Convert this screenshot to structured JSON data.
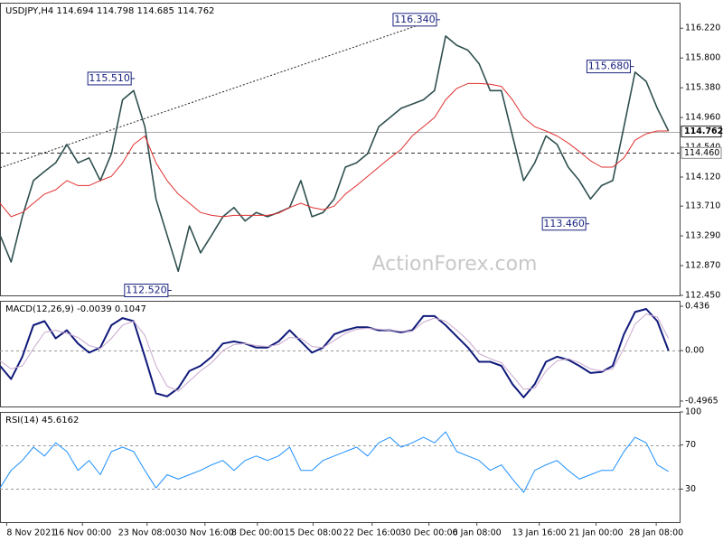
{
  "chart_data": [
    {
      "type": "line",
      "title": "USDJPY,H4  114.694 114.798 114.685 114.762",
      "xlim": [
        0,
        61
      ],
      "ylim": [
        112.45,
        116.58
      ],
      "yticks": [
        {
          "value": 116.22,
          "label": "116.220"
        },
        {
          "value": 115.8,
          "label": "115.800"
        },
        {
          "value": 115.38,
          "label": "115.380"
        },
        {
          "value": 114.96,
          "label": "114.960"
        },
        {
          "value": 114.54,
          "label": "114.540"
        },
        {
          "value": 114.12,
          "label": "114.120"
        },
        {
          "value": 113.71,
          "label": "113.710"
        },
        {
          "value": 113.29,
          "label": "113.290"
        },
        {
          "value": 112.87,
          "label": "112.870"
        },
        {
          "value": 112.45,
          "label": "112.450"
        }
      ],
      "series": [
        {
          "color": "#2f4f4f",
          "values": [
            113.3,
            112.92,
            113.56,
            114.07,
            114.2,
            114.32,
            114.58,
            114.32,
            114.39,
            114.07,
            114.45,
            115.21,
            115.34,
            114.83,
            113.81,
            113.3,
            112.79,
            113.43,
            113.05,
            113.3,
            113.56,
            113.69,
            113.5,
            113.62,
            113.56,
            113.62,
            113.69,
            114.07,
            113.56,
            113.62,
            113.81,
            114.26,
            114.32,
            114.45,
            114.83,
            114.96,
            115.09,
            115.15,
            115.21,
            115.34,
            116.11,
            115.98,
            115.91,
            115.72,
            115.34,
            115.34,
            114.7,
            114.07,
            114.32,
            114.7,
            114.58,
            114.26,
            114.07,
            113.81,
            114.0,
            114.07,
            114.83,
            115.6,
            115.47,
            115.09,
            114.77
          ]
        },
        {
          "color": "#e0302f",
          "values": [
            113.75,
            113.56,
            113.62,
            113.75,
            113.88,
            113.94,
            114.07,
            114.0,
            114.0,
            114.07,
            114.13,
            114.32,
            114.58,
            114.7,
            114.32,
            114.07,
            113.88,
            113.75,
            113.62,
            113.58,
            113.56,
            113.58,
            113.58,
            113.58,
            113.58,
            113.61,
            113.69,
            113.75,
            113.69,
            113.66,
            113.71,
            113.88,
            114.0,
            114.13,
            114.26,
            114.39,
            114.51,
            114.7,
            114.83,
            114.96,
            115.21,
            115.37,
            115.44,
            115.44,
            115.43,
            115.4,
            115.21,
            114.96,
            114.83,
            114.77,
            114.7,
            114.6,
            114.48,
            114.35,
            114.26,
            114.26,
            114.39,
            114.64,
            114.73,
            114.77,
            114.77
          ]
        }
      ],
      "trendline": {
        "x": [
          0,
          39.0
        ],
        "y": [
          114.25,
          116.34
        ]
      },
      "price_lines": [
        {
          "value": 114.762,
          "label": "114.762"
        },
        {
          "value": 114.46,
          "label": "114.460"
        }
      ],
      "annotations": [
        {
          "label": "116.340",
          "value": 116.34,
          "x": 39.5
        },
        {
          "label": "115.510",
          "value": 115.51,
          "x": 12.1
        },
        {
          "label": "115.680",
          "value": 115.68,
          "x": 56.9
        },
        {
          "label": "112.520",
          "value": 112.52,
          "x": 15.4
        },
        {
          "label": "113.460",
          "value": 113.46,
          "x": 52.9
        }
      ]
    },
    {
      "type": "line",
      "title": "MACD(12,26,9) -0.0039 0.1047",
      "xlim": [
        0,
        61
      ],
      "ylim": [
        -0.55,
        0.49
      ],
      "yticks": [
        0.436,
        {
          "value": 0,
          "label": "0.00"
        },
        -0.4965
      ],
      "reference_lines": [
        0
      ],
      "series": [
        {
          "color": "#101a7a",
          "values": [
            -0.15,
            -0.28,
            -0.06,
            0.25,
            0.29,
            0.12,
            0.2,
            0.07,
            -0.02,
            0.03,
            0.25,
            0.32,
            0.29,
            -0.06,
            -0.42,
            -0.45,
            -0.37,
            -0.2,
            -0.15,
            -0.06,
            0.07,
            0.09,
            0.07,
            0.03,
            0.03,
            0.09,
            0.2,
            0.09,
            -0.02,
            0.03,
            0.16,
            0.2,
            0.23,
            0.23,
            0.2,
            0.2,
            0.18,
            0.2,
            0.34,
            0.34,
            0.25,
            0.14,
            0.03,
            -0.11,
            -0.11,
            -0.15,
            -0.33,
            -0.46,
            -0.33,
            -0.11,
            -0.06,
            -0.09,
            -0.15,
            -0.22,
            -0.21,
            -0.15,
            0.16,
            0.38,
            0.41,
            0.29,
            0
          ]
        },
        {
          "color": "#c8a8cc",
          "values": [
            -0.1,
            -0.18,
            -0.15,
            0.02,
            0.18,
            0.2,
            0.17,
            0.13,
            0.05,
            0.02,
            0.12,
            0.25,
            0.29,
            0.15,
            -0.15,
            -0.35,
            -0.4,
            -0.3,
            -0.2,
            -0.12,
            0.0,
            0.06,
            0.07,
            0.05,
            0.04,
            0.06,
            0.13,
            0.12,
            0.04,
            0.03,
            0.1,
            0.17,
            0.21,
            0.22,
            0.21,
            0.2,
            0.19,
            0.19,
            0.28,
            0.32,
            0.29,
            0.2,
            0.1,
            -0.03,
            -0.08,
            -0.12,
            -0.25,
            -0.38,
            -0.37,
            -0.2,
            -0.1,
            -0.08,
            -0.12,
            -0.18,
            -0.2,
            -0.18,
            0.02,
            0.26,
            0.36,
            0.33,
            0.12
          ]
        }
      ]
    },
    {
      "type": "line",
      "title": "RSI(14) 45.6162",
      "xlim": [
        0,
        61
      ],
      "ylim": [
        0,
        100
      ],
      "yticks": [
        100,
        70,
        30
      ],
      "reference_lines": [
        70,
        30
      ],
      "series": [
        {
          "color": "#1e90ff",
          "values": [
            31,
            47,
            56,
            68,
            60,
            72,
            64,
            47,
            56,
            43,
            64,
            68,
            64,
            47,
            31,
            43,
            39,
            43,
            47,
            52,
            56,
            47,
            56,
            60,
            56,
            60,
            68,
            47,
            47,
            56,
            60,
            64,
            68,
            60,
            72,
            77,
            68,
            72,
            77,
            72,
            82,
            64,
            60,
            56,
            47,
            52,
            39,
            27,
            47,
            52,
            56,
            47,
            39,
            43,
            47,
            47,
            64,
            77,
            72,
            52,
            46
          ]
        }
      ],
      "xticks": [
        {
          "value": 0.6,
          "label": "8 Nov 2021"
        },
        {
          "value": 7.4,
          "label": "16 Nov 00:00"
        },
        {
          "value": 13.2,
          "label": "23 Nov 08:00"
        },
        {
          "value": 18.4,
          "label": "30 Nov 16:00"
        },
        {
          "value": 23.1,
          "label": "8 Dec 00:00"
        },
        {
          "value": 28.1,
          "label": "15 Dec 08:00"
        },
        {
          "value": 33.4,
          "label": "22 Dec 16:00"
        },
        {
          "value": 38.5,
          "label": "30 Dec 00:00"
        },
        {
          "value": 42.8,
          "label": "6 Jan 08:00"
        },
        {
          "value": 48.4,
          "label": "13 Jan 16:00"
        },
        {
          "value": 53.5,
          "label": "21 Jan 00:00"
        },
        {
          "value": 58.9,
          "label": "28 Jan 08:00"
        }
      ]
    }
  ],
  "watermark": "ActionForex.com"
}
